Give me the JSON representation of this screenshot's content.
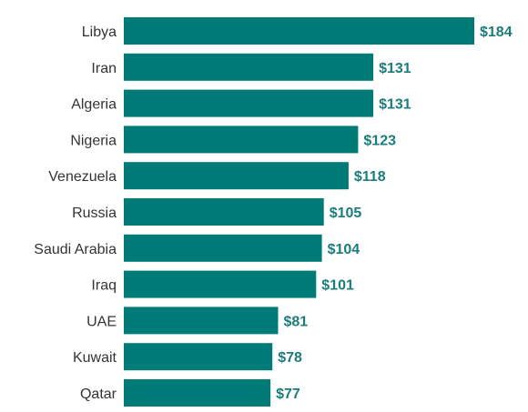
{
  "chart_data": {
    "type": "bar",
    "orientation": "horizontal",
    "title": "",
    "xlabel": "",
    "ylabel": "",
    "categories": [
      "Libya",
      "Iran",
      "Algeria",
      "Nigeria",
      "Venezuela",
      "Russia",
      "Saudi Arabia",
      "Iraq",
      "UAE",
      "Kuwait",
      "Qatar"
    ],
    "values": [
      184,
      131,
      131,
      123,
      118,
      105,
      104,
      101,
      81,
      78,
      77
    ],
    "value_labels": [
      "$184",
      "$131",
      "$131",
      "$123",
      "$118",
      "$105",
      "$104",
      "$101",
      "$81",
      "$78",
      "$77"
    ],
    "xlim": [
      0,
      184
    ],
    "grid": false,
    "legend": "none",
    "colors": {
      "bar": "#007b78",
      "value_text": "#1a7d7a",
      "category_text": "#333333"
    }
  }
}
